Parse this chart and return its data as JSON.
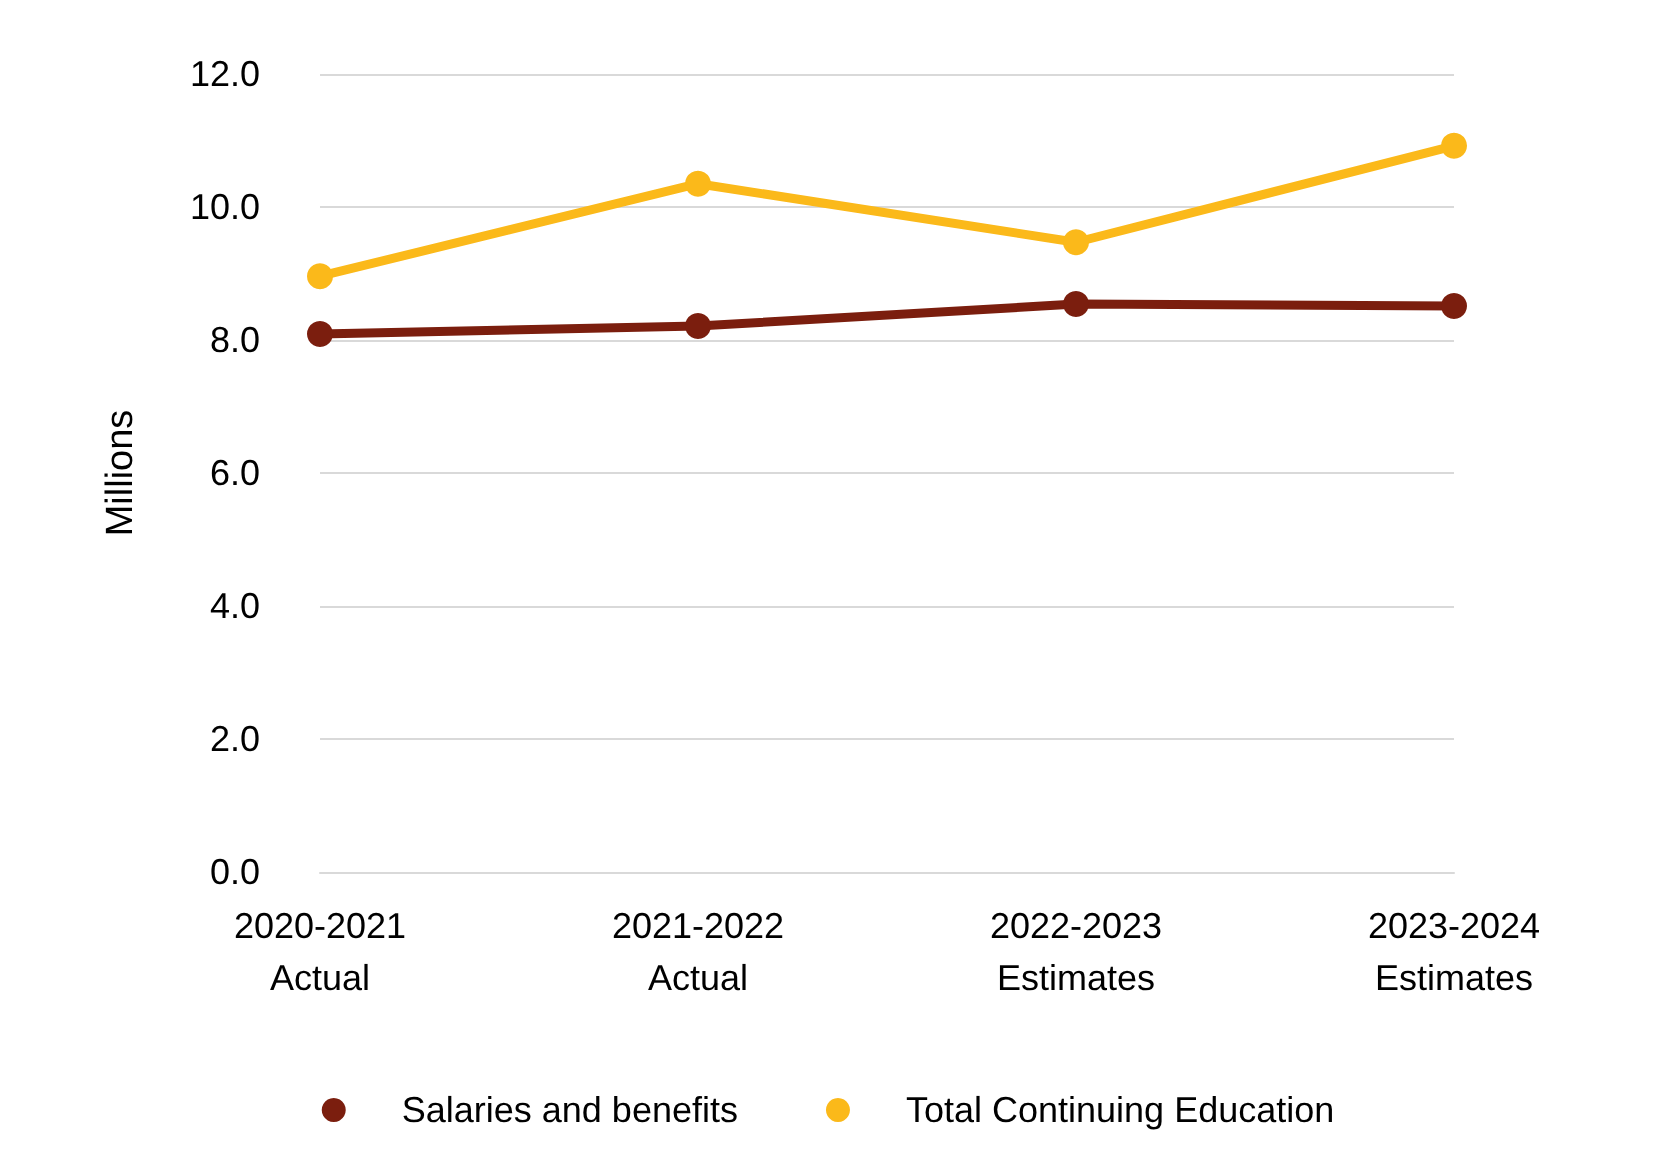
{
  "chart_data": {
    "type": "line",
    "ylabel": "Millions",
    "categories": [
      "2020-2021\nActual",
      "2021-2022\nActual",
      "2022-2023\nEstimates",
      "2023-2024\nEstimates"
    ],
    "series": [
      {
        "name": "Salaries and benefits",
        "color": "#7b1e0e",
        "values": [
          8.09,
          8.21,
          8.54,
          8.51
        ]
      },
      {
        "name": "Total Continuing Education",
        "color": "#fbb91a",
        "values": [
          8.96,
          10.35,
          9.47,
          10.92
        ]
      }
    ],
    "ylim": [
      0,
      12
    ],
    "yticks": [
      {
        "value": 0,
        "label": "0.0"
      },
      {
        "value": 2,
        "label": "2.0"
      },
      {
        "value": 4,
        "label": "4.0"
      },
      {
        "value": 6,
        "label": "6.0"
      },
      {
        "value": 8,
        "label": "8.0"
      },
      {
        "value": 10,
        "label": "10.0"
      },
      {
        "value": 12,
        "label": "12.0"
      }
    ],
    "grid": "y",
    "legend": "bottom",
    "marker": "circle",
    "line_style": "solid"
  }
}
